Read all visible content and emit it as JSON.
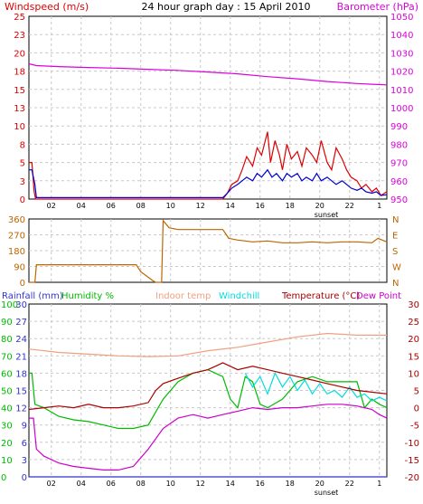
{
  "title": "24 hour graph day : 15 April 2010",
  "hour_labels": [
    "02",
    "04",
    "06",
    "08",
    "10",
    "12",
    "14",
    "16",
    "18",
    "20",
    "22",
    "1"
  ],
  "sunset_label": "sunset",
  "colors": {
    "wind": "#dd0000",
    "gust": "#0000cc",
    "baro": "#dd00dd",
    "winddir": "#bb6600",
    "rain": "#3333cc",
    "humidity": "#00bb00",
    "indoor": "#f0a080",
    "windchill": "#00dddd",
    "temp": "#aa0000",
    "dew": "#cc00cc",
    "grid": "#c8c8c8",
    "frame": "#000000"
  },
  "chart_data": [
    {
      "type": "line",
      "name": "wind-baro",
      "left_label": "Windspeed (m/s)",
      "right_label": "Barometer (hPa)",
      "left_ticks": [
        0,
        3,
        5,
        8,
        10,
        13,
        15,
        18,
        20,
        23,
        25
      ],
      "right_ticks": [
        950,
        960,
        970,
        980,
        990,
        1000,
        1010,
        1020,
        1030,
        1040,
        1050
      ],
      "ylim_left": [
        0,
        25
      ],
      "ylim_right": [
        950,
        1050
      ],
      "x_range_hours": [
        0,
        24
      ],
      "series": [
        {
          "key": "baro",
          "axis": "right",
          "hours": [
            0,
            0.5,
            2,
            4,
            6,
            8,
            10,
            12,
            14,
            16,
            18,
            20,
            22,
            23,
            24
          ],
          "values": [
            1024,
            1023,
            1022.5,
            1022,
            1021.6,
            1021,
            1020.4,
            1019.5,
            1018.5,
            1017,
            1015.8,
            1014.3,
            1013.2,
            1012.8,
            1012.5
          ]
        },
        {
          "key": "wind",
          "axis": "left",
          "hours": [
            0,
            0.05,
            0.2,
            0.35,
            0.45,
            0.6,
            1,
            13,
            13.3,
            13.6,
            14,
            14.3,
            14.6,
            15,
            15.3,
            15.6,
            16,
            16.2,
            16.5,
            16.8,
            17,
            17.3,
            17.6,
            18,
            18.3,
            18.6,
            19,
            19.3,
            19.6,
            20,
            20.3,
            20.6,
            21,
            21.3,
            21.6,
            22,
            22.3,
            22.6,
            23,
            23.3,
            23.6,
            24
          ],
          "values": [
            5,
            5,
            5,
            1,
            0,
            0,
            0,
            0,
            0.8,
            2,
            2.5,
            4,
            5.8,
            4.5,
            7,
            6,
            9.2,
            5,
            8,
            6,
            4,
            7.5,
            5.5,
            6.5,
            4.5,
            7,
            6,
            5,
            8,
            5,
            4,
            7,
            5.5,
            4,
            3,
            2.5,
            1.5,
            2,
            1,
            1.5,
            0.5,
            1
          ]
        },
        {
          "key": "gust",
          "axis": "left",
          "hours": [
            0,
            0.2,
            0.4,
            0.5,
            1,
            13,
            13.3,
            13.6,
            14,
            14.3,
            14.6,
            15,
            15.3,
            15.6,
            16,
            16.3,
            16.6,
            17,
            17.3,
            17.6,
            18,
            18.3,
            18.6,
            19,
            19.3,
            19.6,
            20,
            20.3,
            20.6,
            21,
            21.3,
            21.6,
            22,
            22.3,
            22.6,
            23,
            23.3,
            23.6,
            24
          ],
          "values": [
            4,
            4,
            2,
            0.2,
            0.2,
            0.2,
            0.8,
            1.5,
            2,
            2.5,
            3,
            2.5,
            3.5,
            3,
            4,
            3,
            3.5,
            2.5,
            3.5,
            3,
            3.5,
            2.5,
            3,
            2.5,
            3.5,
            2.5,
            3,
            2.5,
            2,
            2.5,
            2,
            1.5,
            1.2,
            1.5,
            1,
            0.8,
            1,
            0.5,
            0.6
          ]
        }
      ]
    },
    {
      "type": "line",
      "name": "wind-direction",
      "left_ticks": [
        0,
        90,
        180,
        270,
        360
      ],
      "right_ticks": [
        "N",
        "W",
        "S",
        "E",
        "N"
      ],
      "ylim": [
        0,
        360
      ],
      "x_range_hours": [
        0,
        24
      ],
      "series": [
        {
          "key": "winddir",
          "hours": [
            0,
            0.4,
            0.5,
            0.6,
            7.2,
            7.5,
            8.3,
            8.5,
            8.9,
            9.0,
            9.4,
            10,
            11,
            12,
            13,
            13.4,
            14,
            15,
            16,
            17,
            18,
            19,
            20,
            21,
            22,
            23,
            23.4,
            24
          ],
          "values": [
            0,
            0,
            100,
            100,
            100,
            60,
            10,
            0,
            0,
            350,
            310,
            300,
            300,
            300,
            300,
            250,
            240,
            230,
            235,
            225,
            225,
            230,
            225,
            230,
            230,
            225,
            250,
            230
          ]
        }
      ]
    },
    {
      "type": "line",
      "name": "temperature-humidity-rain",
      "left_labels": [
        "Rainfall (mm)",
        "Humidity %"
      ],
      "mid_labels": [
        "Indoor temp",
        "Windchill"
      ],
      "right_labels": [
        "Temperature (°C)",
        "Dew Point"
      ],
      "left_ticks_humidity": [
        0,
        10,
        20,
        30,
        40,
        50,
        60,
        70,
        80,
        90,
        100
      ],
      "left_ticks_rain": [
        0,
        3,
        6,
        9,
        12,
        15,
        18,
        21,
        24,
        27,
        30
      ],
      "right_ticks": [
        -20,
        -15,
        -10,
        -5,
        0,
        5,
        10,
        15,
        20,
        25,
        30
      ],
      "ylim_right": [
        -20,
        30
      ],
      "x_range_hours": [
        0,
        24
      ],
      "series": [
        {
          "key": "indoor",
          "hours": [
            0,
            2,
            4,
            6,
            8,
            10,
            12,
            14,
            16,
            18,
            20,
            22,
            24
          ],
          "values": [
            17,
            16,
            15.5,
            15,
            14.8,
            15,
            16.5,
            17.5,
            19,
            20.5,
            21.5,
            21,
            21
          ]
        },
        {
          "key": "humidity",
          "axis": "humidity",
          "hours": [
            0,
            0.2,
            0.4,
            1,
            2,
            3,
            4,
            5,
            6,
            7,
            8,
            9,
            10,
            11,
            12,
            13,
            13.5,
            14,
            14.5,
            15,
            15.5,
            16,
            17,
            18,
            19,
            20,
            21,
            22,
            22.5,
            23,
            23.5,
            24
          ],
          "values": [
            60,
            60,
            42,
            40,
            35,
            33,
            32,
            30,
            28,
            28,
            30,
            45,
            55,
            60,
            62,
            58,
            45,
            40,
            58,
            55,
            42,
            40,
            45,
            55,
            58,
            55,
            55,
            55,
            40,
            45,
            42,
            40
          ]
        },
        {
          "key": "dew",
          "hours": [
            0,
            0.3,
            0.5,
            1,
            2,
            3,
            4,
            5,
            6,
            7,
            8,
            9,
            10,
            11,
            12,
            13,
            14,
            15,
            16,
            17,
            18,
            19,
            20,
            21,
            22,
            23,
            23.5,
            24
          ],
          "values": [
            -3,
            -3,
            -12,
            -14,
            -16,
            -17,
            -17.5,
            -18,
            -18,
            -17,
            -12,
            -6,
            -3,
            -2,
            -3,
            -2,
            -1,
            0,
            -0.5,
            0,
            0,
            0.5,
            1,
            1,
            0.5,
            -0.5,
            -2,
            -3
          ]
        },
        {
          "key": "windchill",
          "hours": [
            14.5,
            15,
            15.5,
            16,
            16.5,
            17,
            17.5,
            18,
            18.5,
            19,
            19.5,
            20,
            20.5,
            21,
            21.5,
            22,
            22.5,
            23,
            23.5,
            24
          ],
          "values": [
            10,
            6,
            9,
            4,
            10,
            6,
            9,
            5,
            8,
            4,
            7,
            4,
            5,
            3,
            6,
            3,
            4,
            2,
            3,
            2
          ]
        },
        {
          "key": "temp",
          "hours": [
            0,
            1,
            2,
            3,
            4,
            5,
            6,
            7,
            8,
            8.5,
            9,
            10,
            11,
            12,
            12.5,
            13,
            13.5,
            14,
            15,
            16,
            17,
            18,
            19,
            20,
            21,
            22,
            23,
            24
          ],
          "values": [
            -0.5,
            0,
            0.5,
            0,
            1,
            0,
            0,
            0.5,
            1.5,
            5,
            7,
            8.5,
            10,
            11,
            12,
            13,
            12,
            11,
            12,
            11,
            10,
            9,
            8,
            7,
            6,
            5,
            4.5,
            4
          ]
        },
        {
          "key": "rain",
          "axis": "rain",
          "hours": [
            0,
            24
          ],
          "values": [
            0,
            0
          ]
        }
      ]
    }
  ]
}
